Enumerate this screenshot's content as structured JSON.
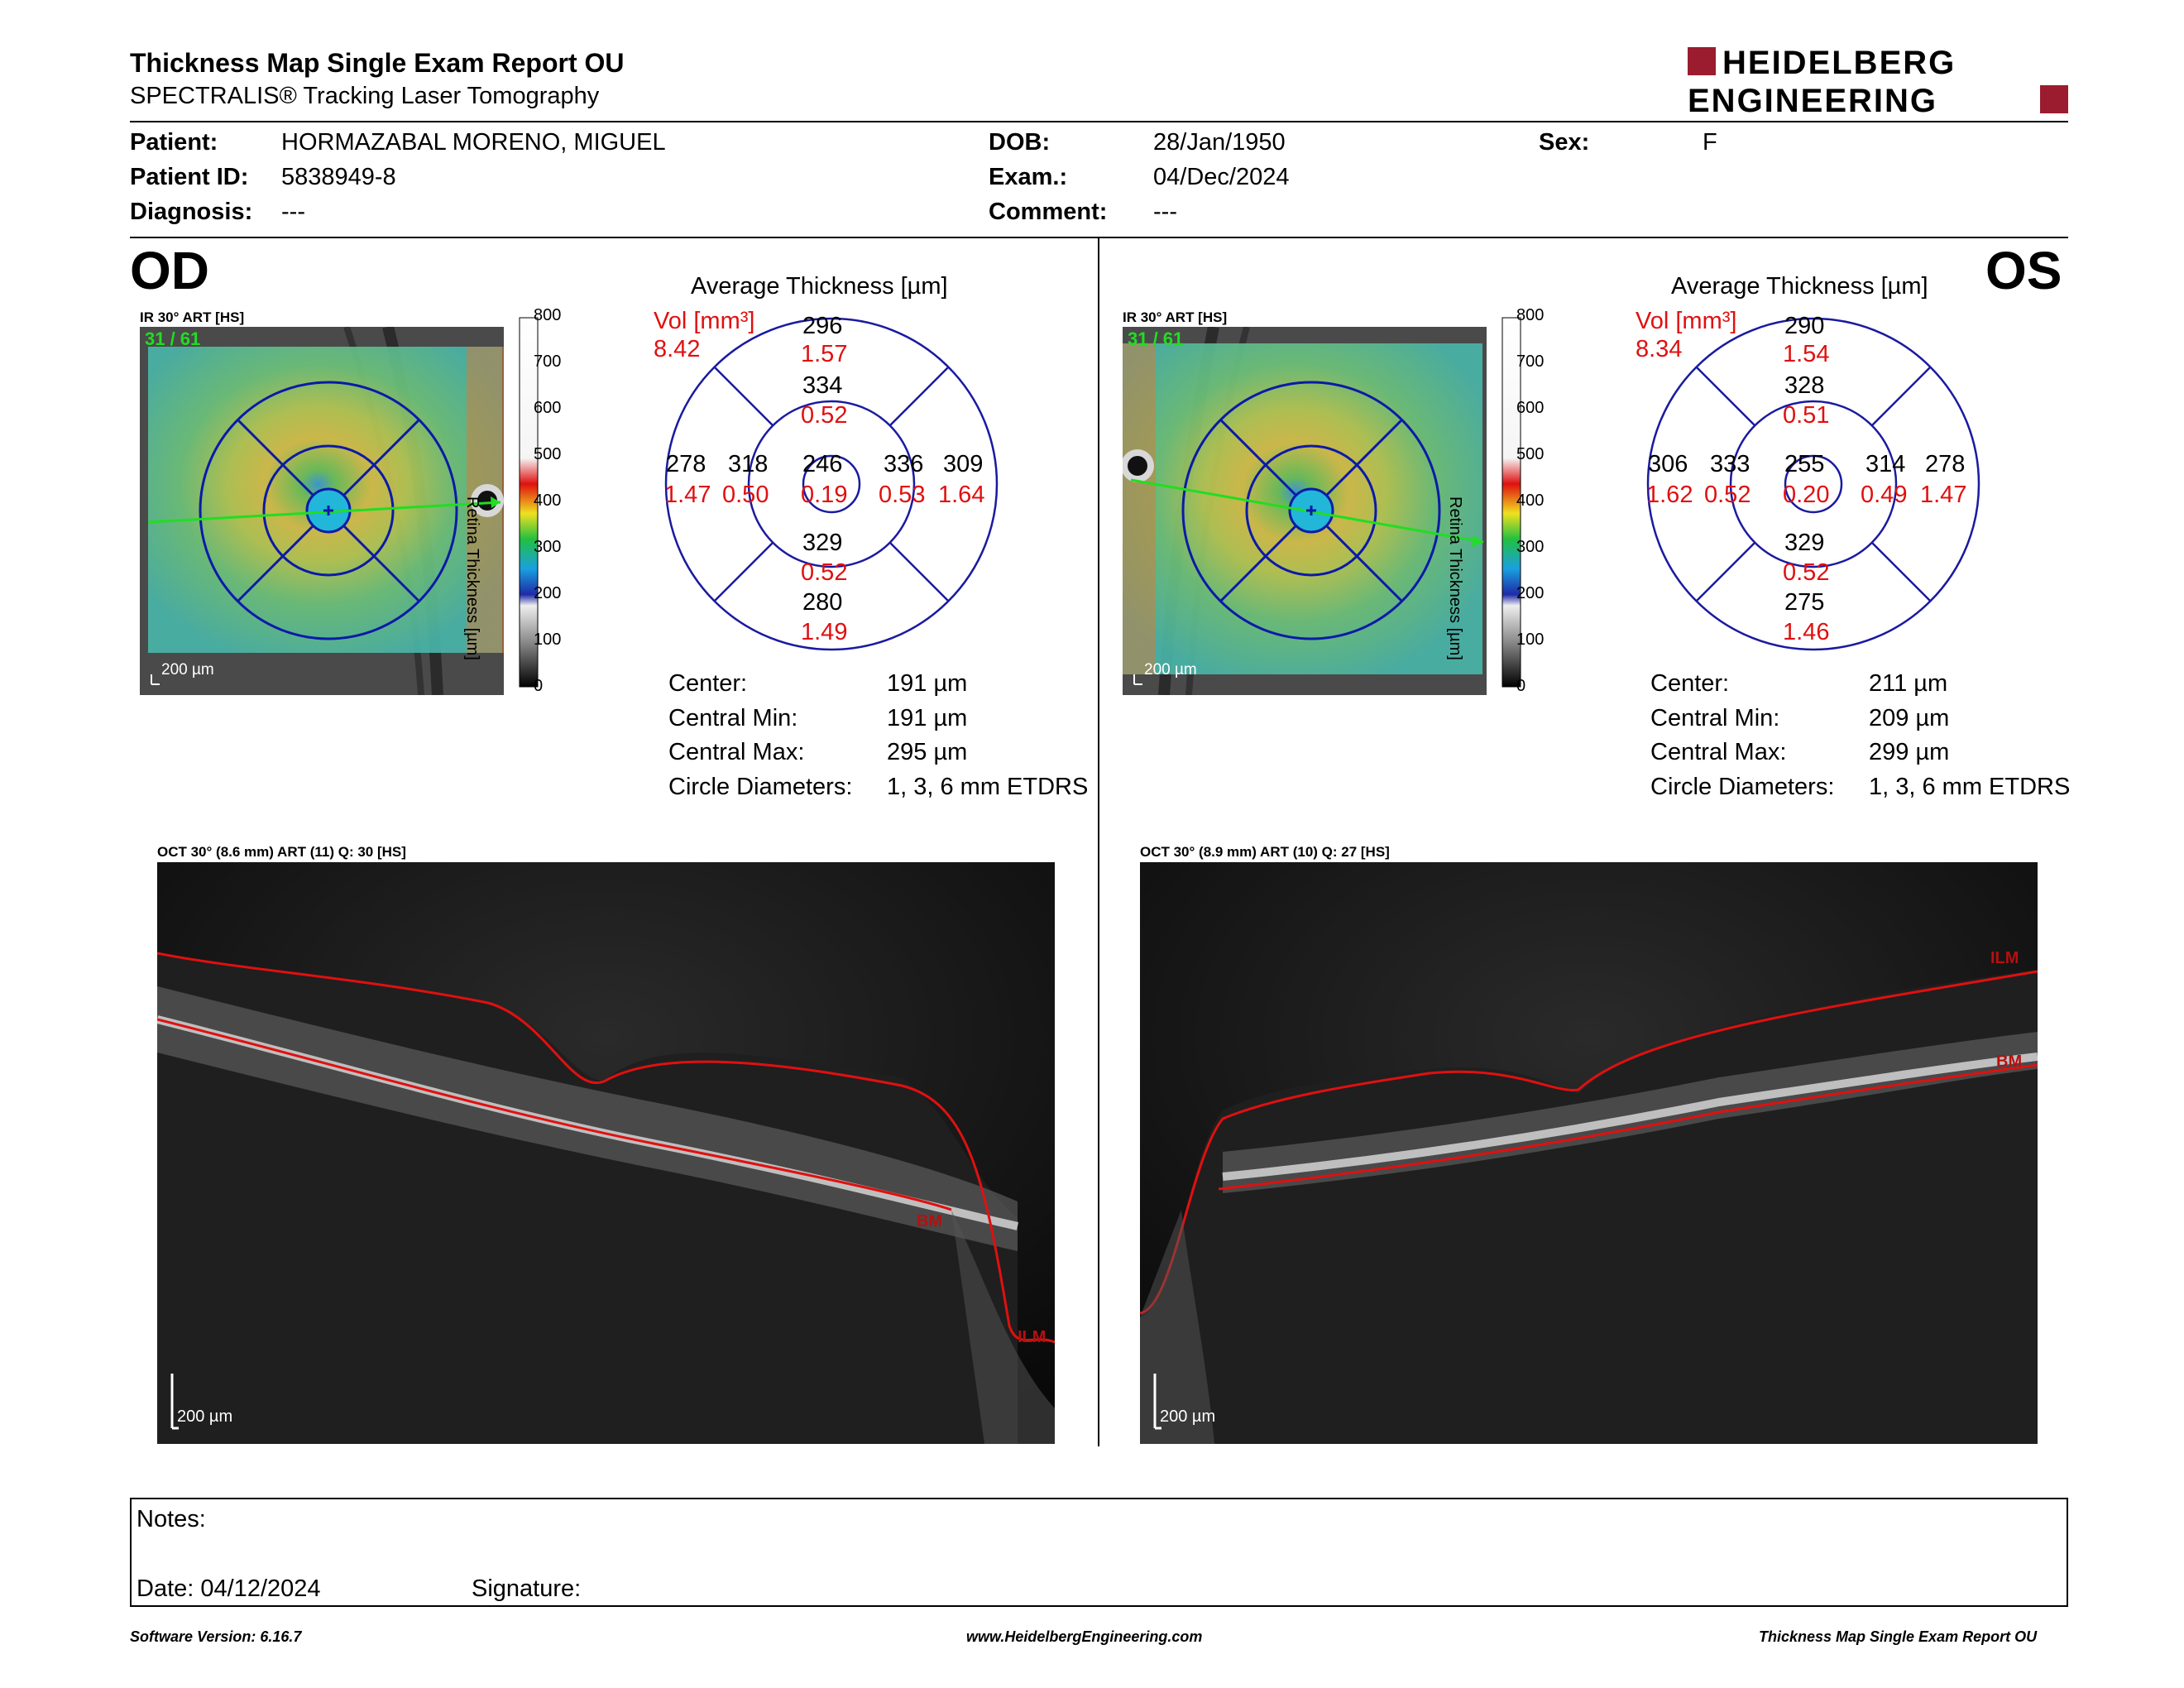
{
  "header": {
    "title": "Thickness Map Single Exam Report OU",
    "subtitle": "SPECTRALIS® Tracking Laser Tomography",
    "logo_line1": "HEIDELBERG",
    "logo_line2": "ENGINEERING"
  },
  "patient": {
    "patient_label": "Patient:",
    "patient_value": "HORMAZABAL MORENO, MIGUEL",
    "id_label": "Patient ID:",
    "id_value": "5838949-8",
    "diagnosis_label": "Diagnosis:",
    "diagnosis_value": "---",
    "dob_label": "DOB:",
    "dob_value": "28/Jan/1950",
    "exam_label": "Exam.:",
    "exam_value": "04/Dec/2024",
    "comment_label": "Comment:",
    "comment_value": "---",
    "sex_label": "Sex:",
    "sex_value": "F"
  },
  "od": {
    "eye": "OD",
    "ir_title": "IR 30° ART [HS]",
    "ir_overlay": "31 / 61",
    "ir_scale": "200 µm",
    "colorbar_ticks": [
      "800",
      "700",
      "600",
      "500",
      "400",
      "300",
      "200",
      "100",
      "0"
    ],
    "colorbar_label": "Retina Thickness [µm]",
    "avg_title": "Average Thickness [µm]",
    "vol_label": "Vol [mm³]",
    "vol_total": "8.42",
    "sectors": {
      "outer_sup": {
        "t": "296",
        "v": "1.57"
      },
      "inner_sup": {
        "t": "334",
        "v": "0.52"
      },
      "outer_left": {
        "t": "278",
        "v": "1.47"
      },
      "inner_left": {
        "t": "318",
        "v": "0.50"
      },
      "center": {
        "t": "246",
        "v": "0.19"
      },
      "inner_right": {
        "t": "336",
        "v": "0.53"
      },
      "outer_right": {
        "t": "309",
        "v": "1.64"
      },
      "inner_inf": {
        "t": "329",
        "v": "0.52"
      },
      "outer_inf": {
        "t": "280",
        "v": "1.49"
      }
    },
    "stats": [
      {
        "label": "Center:",
        "value": "191 µm"
      },
      {
        "label": "Central Min:",
        "value": "191 µm"
      },
      {
        "label": "Central Max:",
        "value": "295 µm"
      },
      {
        "label": "Circle Diameters:",
        "value": "1, 3, 6 mm ETDRS"
      }
    ],
    "oct_title": "OCT 30° (8.6 mm) ART (11) Q: 30 [HS]",
    "oct_scale": "200 µm",
    "label_bm": "BM",
    "label_ilm": "ILM"
  },
  "os": {
    "eye": "OS",
    "ir_title": "IR 30° ART [HS]",
    "ir_overlay": "31 / 61",
    "ir_scale": "200 µm",
    "colorbar_ticks": [
      "800",
      "700",
      "600",
      "500",
      "400",
      "300",
      "200",
      "100",
      "0"
    ],
    "colorbar_label": "Retina Thickness [µm]",
    "avg_title": "Average Thickness [µm]",
    "vol_label": "Vol [mm³]",
    "vol_total": "8.34",
    "sectors": {
      "outer_sup": {
        "t": "290",
        "v": "1.54"
      },
      "inner_sup": {
        "t": "328",
        "v": "0.51"
      },
      "outer_left": {
        "t": "306",
        "v": "1.62"
      },
      "inner_left": {
        "t": "333",
        "v": "0.52"
      },
      "center": {
        "t": "255",
        "v": "0.20"
      },
      "inner_right": {
        "t": "314",
        "v": "0.49"
      },
      "outer_right": {
        "t": "278",
        "v": "1.47"
      },
      "inner_inf": {
        "t": "329",
        "v": "0.52"
      },
      "outer_inf": {
        "t": "275",
        "v": "1.46"
      }
    },
    "stats": [
      {
        "label": "Center:",
        "value": "211 µm"
      },
      {
        "label": "Central Min:",
        "value": "209 µm"
      },
      {
        "label": "Central Max:",
        "value": "299 µm"
      },
      {
        "label": "Circle Diameters:",
        "value": "1, 3, 6 mm ETDRS"
      }
    ],
    "oct_title": "OCT 30° (8.9 mm) ART (10) Q: 27 [HS]",
    "oct_scale": "200 µm",
    "label_bm": "BM",
    "label_ilm": "ILM"
  },
  "notes": {
    "notes_label": "Notes:",
    "date_label": "Date: 04/12/2024",
    "signature_label": "Signature:"
  },
  "footer": {
    "software": "Software Version: 6.16.7",
    "website": "www.HeidelbergEngineering.com",
    "report": "Thickness Map Single Exam Report OU"
  }
}
